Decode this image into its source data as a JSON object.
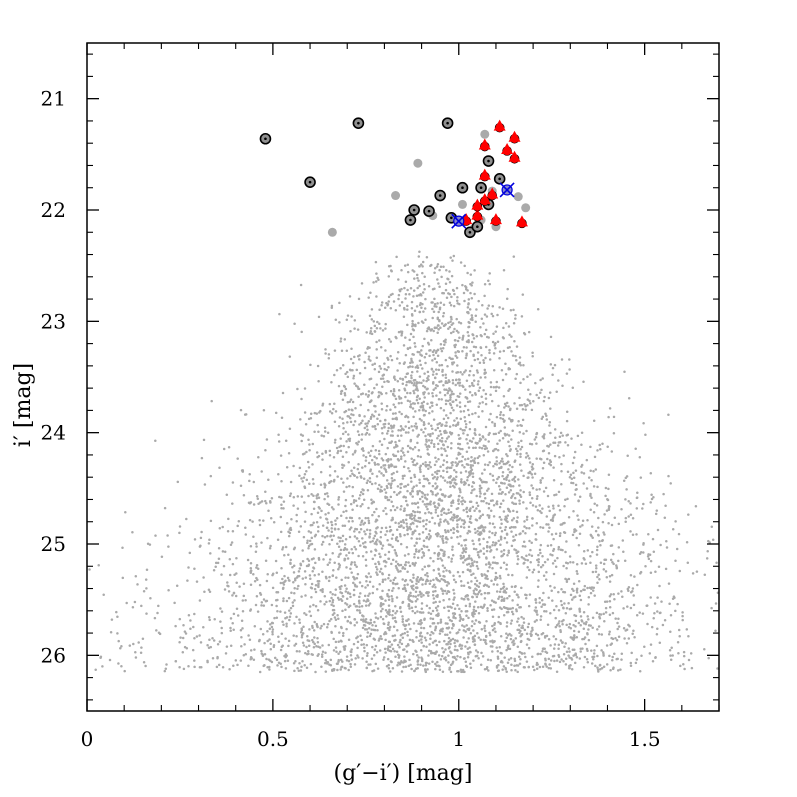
{
  "chart_data": {
    "type": "scatter",
    "xlabel": "(g′−i′) [mag]",
    "ylabel": "i′ [mag]",
    "xlim": [
      0,
      1.7
    ],
    "ylim": [
      26.5,
      20.5
    ],
    "y_inverted": true,
    "grid": false,
    "legend": "none",
    "x_ticks": [
      {
        "value": 0,
        "label": "0"
      },
      {
        "value": 0.5,
        "label": "0.5"
      },
      {
        "value": 1,
        "label": "1"
      },
      {
        "value": 1.5,
        "label": "1.5"
      }
    ],
    "y_ticks": [
      {
        "value": 21,
        "label": "21"
      },
      {
        "value": 22,
        "label": "22"
      },
      {
        "value": 23,
        "label": "23"
      },
      {
        "value": 24,
        "label": "24"
      },
      {
        "value": 25,
        "label": "25"
      },
      {
        "value": 26,
        "label": "26"
      }
    ],
    "colors": {
      "background_points": "#aaaaaa",
      "grey_circles": "#a0a0a0",
      "outlined_circles": "#909090",
      "red_triangles": "#ff0000",
      "blue_crosses": "#0000dd"
    },
    "series": [
      {
        "marker": "large-dot",
        "color": "#aaaaaa",
        "points": [
          [
            0.89,
            21.58
          ],
          [
            0.83,
            21.87
          ],
          [
            0.66,
            22.2
          ],
          [
            1.07,
            21.32
          ],
          [
            0.93,
            22.05
          ],
          [
            1.04,
            22.17
          ],
          [
            1.09,
            21.83
          ],
          [
            1.18,
            21.98
          ],
          [
            1.16,
            21.88
          ],
          [
            1.1,
            22.15
          ],
          [
            1.01,
            21.95
          ],
          [
            1.06,
            22.09
          ]
        ]
      },
      {
        "marker": "outlined-circle",
        "color": "#909090",
        "points": [
          [
            0.48,
            21.36
          ],
          [
            0.6,
            21.75
          ],
          [
            0.73,
            21.22
          ],
          [
            0.97,
            21.22
          ],
          [
            1.08,
            21.56
          ],
          [
            1.11,
            21.72
          ],
          [
            1.06,
            21.8
          ],
          [
            0.95,
            21.87
          ],
          [
            1.01,
            21.8
          ],
          [
            0.92,
            22.01
          ],
          [
            0.88,
            22.0
          ],
          [
            0.87,
            22.09
          ],
          [
            0.98,
            22.07
          ],
          [
            1.03,
            22.2
          ],
          [
            1.05,
            22.15
          ],
          [
            1.08,
            21.95
          ]
        ]
      },
      {
        "marker": "red-triangle",
        "color": "#ff0000",
        "points": [
          [
            1.11,
            21.26
          ],
          [
            1.07,
            21.43
          ],
          [
            1.15,
            21.36
          ],
          [
            1.13,
            21.47
          ],
          [
            1.15,
            21.54
          ],
          [
            1.07,
            21.7
          ],
          [
            1.09,
            21.87
          ],
          [
            1.07,
            21.92
          ],
          [
            1.05,
            22.06
          ],
          [
            1.1,
            22.1
          ],
          [
            1.17,
            22.12
          ],
          [
            1.02,
            22.1
          ],
          [
            1.05,
            21.97
          ]
        ]
      },
      {
        "marker": "blue-cross",
        "color": "#0000dd",
        "points": [
          [
            1.13,
            21.82
          ],
          [
            1.0,
            22.1
          ]
        ]
      }
    ]
  }
}
